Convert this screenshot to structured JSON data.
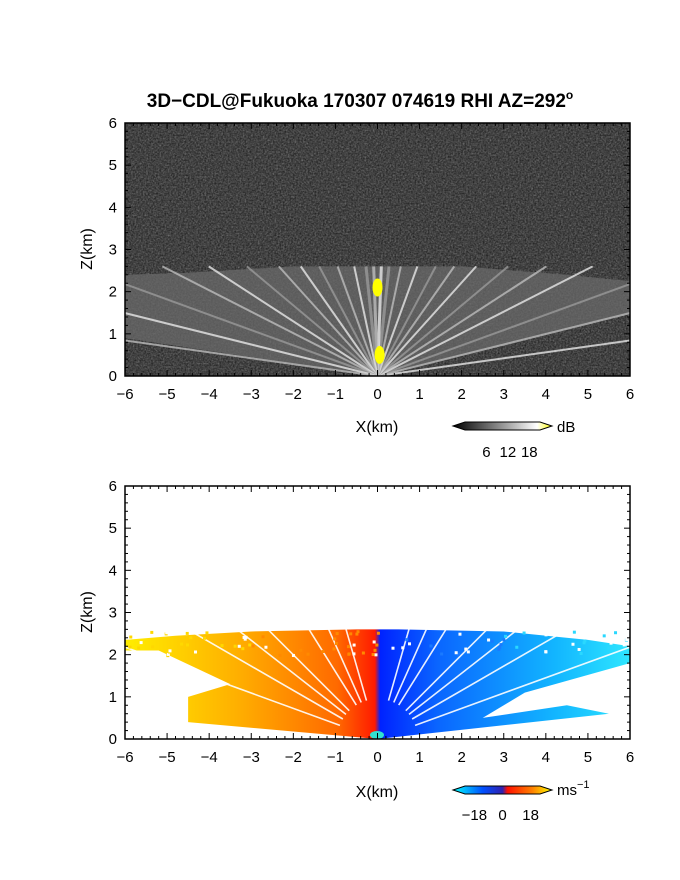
{
  "figure": {
    "title_main": "3D−CDL@Fukuoka 170307 074619 RHI AZ=292",
    "title_deg": "o"
  },
  "chart_data": [
    {
      "type": "heatmap",
      "name": "reflectivity_rhi",
      "title": "3D−CDL@Fukuoka 170307 074619 RHI AZ=292°",
      "xlabel": "X(km)",
      "ylabel": "Z(km)",
      "xlim": [
        -6,
        6
      ],
      "ylim": [
        0,
        6
      ],
      "x_ticks": [
        -6,
        -5,
        -4,
        -3,
        -2,
        -1,
        0,
        1,
        2,
        3,
        4,
        5,
        6
      ],
      "y_ticks": [
        0,
        1,
        2,
        3,
        4,
        5,
        6
      ],
      "x_tick_labels": [
        "−6",
        "−5",
        "−4",
        "−3",
        "−2",
        "−1",
        "0",
        "1",
        "2",
        "3",
        "4",
        "5",
        "6"
      ],
      "y_tick_labels": [
        "0",
        "1",
        "2",
        "3",
        "4",
        "5",
        "6"
      ],
      "colorbar": {
        "unit": "dB",
        "tick_values": [
          6,
          12,
          18
        ],
        "tick_labels": [
          "6",
          "12",
          "18"
        ],
        "colors": [
          "#000000",
          "#ffffff",
          "#ffff00"
        ]
      },
      "layer_top_km": 2.6,
      "high_echo_spots_km": [
        [
          0.0,
          2.1
        ],
        [
          0.05,
          0.5
        ]
      ]
    },
    {
      "type": "heatmap",
      "name": "doppler_velocity_rhi",
      "xlabel": "X(km)",
      "ylabel": "Z(km)",
      "xlim": [
        -6,
        6
      ],
      "ylim": [
        0,
        6
      ],
      "x_ticks": [
        -6,
        -5,
        -4,
        -3,
        -2,
        -1,
        0,
        1,
        2,
        3,
        4,
        5,
        6
      ],
      "y_ticks": [
        0,
        1,
        2,
        3,
        4,
        5,
        6
      ],
      "x_tick_labels": [
        "−6",
        "−5",
        "−4",
        "−3",
        "−2",
        "−1",
        "0",
        "1",
        "2",
        "3",
        "4",
        "5",
        "6"
      ],
      "y_tick_labels": [
        "0",
        "1",
        "2",
        "3",
        "4",
        "5",
        "6"
      ],
      "colorbar": {
        "unit": "ms",
        "unit_exp": "−1",
        "tick_values": [
          -18,
          0,
          18
        ],
        "tick_labels": [
          "−18",
          "0",
          "18"
        ],
        "colors": [
          "#00ffff",
          "#0000ff",
          "#ff0000",
          "#ffff00"
        ]
      },
      "echo_top_km": 2.6,
      "left_side": "positive velocity (red to yellow)",
      "right_side": "negative velocity (blue to cyan)"
    }
  ]
}
